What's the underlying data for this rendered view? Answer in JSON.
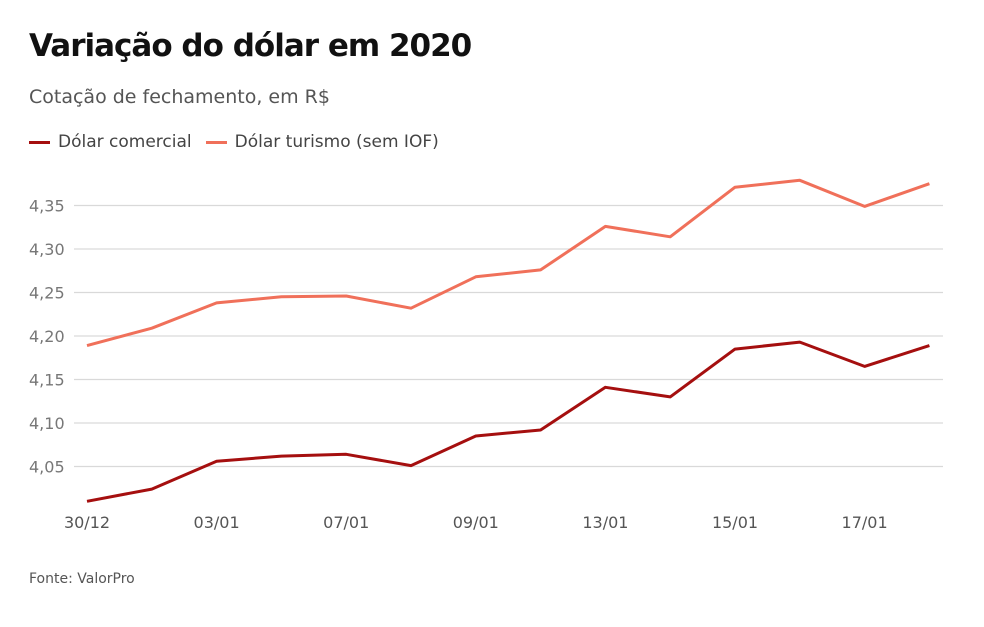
{
  "header": {
    "title": "Variação do dólar em 2020",
    "subtitle": "Cotação de fechamento, em R$"
  },
  "footer": {
    "source": "Fonte: ValorPro"
  },
  "chart_data": {
    "type": "line",
    "title": "Variação do dólar em 2020",
    "subtitle": "Cotação de fechamento, em R$",
    "xlabel": "",
    "ylabel": "",
    "ylim": [
      4.0,
      4.38
    ],
    "y_ticks": [
      4.05,
      4.1,
      4.15,
      4.2,
      4.25,
      4.3,
      4.35
    ],
    "y_tick_labels": [
      "4,05",
      "4,10",
      "4,15",
      "4,20",
      "4,25",
      "4,30",
      "4,35"
    ],
    "x_tick_labels": [
      {
        "index": 0,
        "label": "30/12"
      },
      {
        "index": 2,
        "label": "03/01"
      },
      {
        "index": 4,
        "label": "07/01"
      },
      {
        "index": 6,
        "label": "09/01"
      },
      {
        "index": 8,
        "label": "13/01"
      },
      {
        "index": 10,
        "label": "15/01"
      },
      {
        "index": 12,
        "label": "17/01"
      }
    ],
    "point_count": 14,
    "grid": true,
    "legend_position": "top-left",
    "series": [
      {
        "name": "Dólar comercial",
        "color": "#a50f0f",
        "values": [
          4.01,
          4.024,
          4.056,
          4.062,
          4.064,
          4.051,
          4.085,
          4.092,
          4.141,
          4.13,
          4.185,
          4.193,
          4.165,
          4.189
        ]
      },
      {
        "name": "Dólar turismo (sem IOF)",
        "color": "#f0705a",
        "values": [
          4.189,
          4.209,
          4.238,
          4.245,
          4.246,
          4.232,
          4.268,
          4.276,
          4.326,
          4.314,
          4.371,
          4.379,
          4.349,
          4.375
        ]
      }
    ],
    "gridline_color": "#d9d9d9"
  }
}
